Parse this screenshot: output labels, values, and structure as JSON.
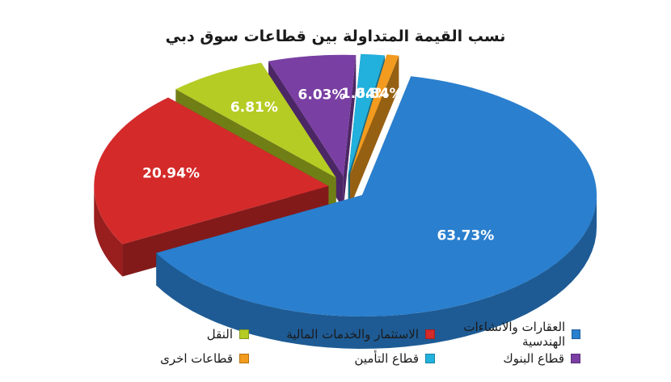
{
  "title": "نسب القيمة المتداولة بين قطاعات سوق دبي",
  "chart_data": {
    "type": "pie",
    "title": "نسب القيمة المتداولة بين قطاعات سوق دبي",
    "exploded": true,
    "three_d": true,
    "legend_position": "bottom",
    "slices": [
      {
        "name": "العقارات والانشاءات الهندسية",
        "value": 63.73,
        "label": "63.73%",
        "color": "#2a7fce"
      },
      {
        "name": "الاستثمار والخدمات المالية",
        "value": 20.94,
        "label": "20.94%",
        "color": "#d42a2a"
      },
      {
        "name": "النقل",
        "value": 6.81,
        "label": "6.81%",
        "color": "#b5cc24"
      },
      {
        "name": "قطاع البنوك",
        "value": 6.03,
        "label": "6.03%",
        "color": "#7a3fa3"
      },
      {
        "name": "قطاع التأمين",
        "value": 1.64,
        "label": "1.64%",
        "color": "#22b0dc"
      },
      {
        "name": "قطاعات اخرى",
        "value": 0.84,
        "label": "0.84%",
        "color": "#f29b1e"
      }
    ]
  },
  "legend": [
    {
      "label": "العقارات والانشاءات الهندسية",
      "color": "#2a7fce"
    },
    {
      "label": "قطاع البنوك",
      "color": "#7a3fa3"
    },
    {
      "label": "الاستثمار والخدمات المالية",
      "color": "#d42a2a"
    },
    {
      "label": "قطاع التأمين",
      "color": "#22b0dc"
    },
    {
      "label": "النقل",
      "color": "#b5cc24"
    },
    {
      "label": "قطاعات اخرى",
      "color": "#f29b1e"
    }
  ]
}
